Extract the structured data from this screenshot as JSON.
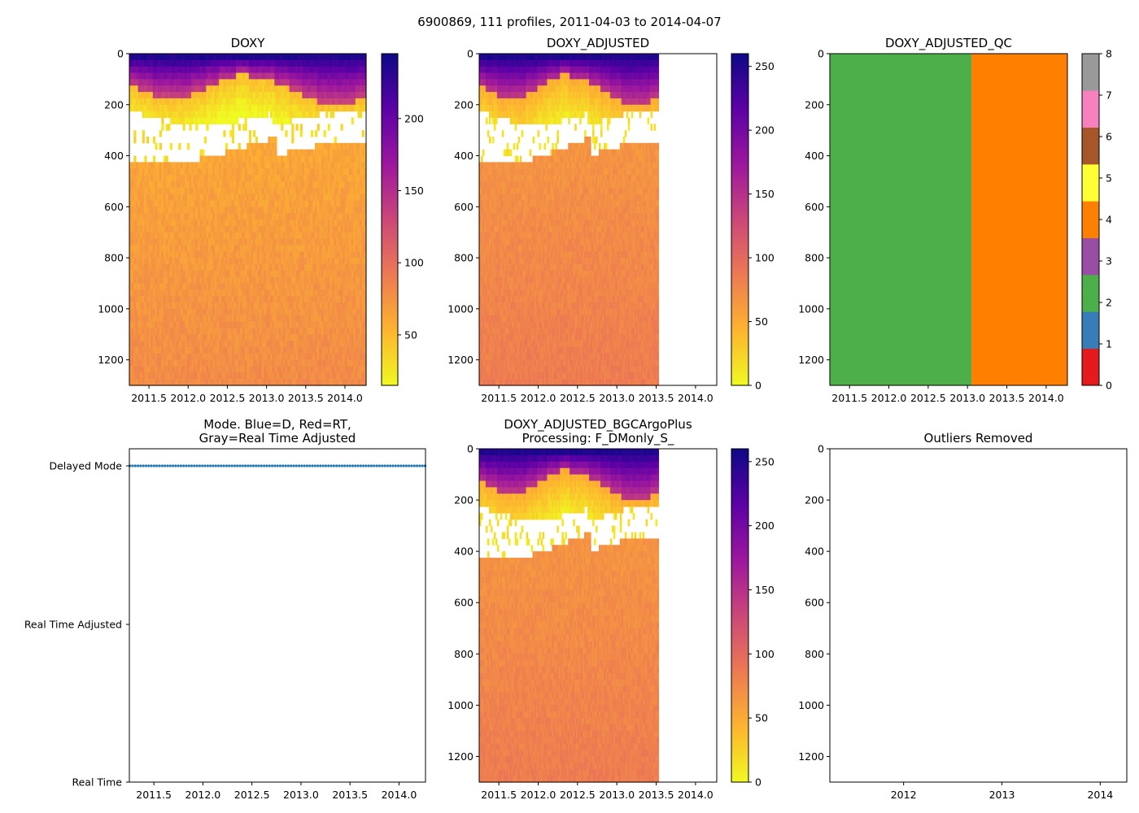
{
  "suptitle": "6900869, 111 profiles, 2011-04-03 to 2014-04-07",
  "colors": {
    "plasma_stops": [
      "#f0f921",
      "#fdb42f",
      "#ed7953",
      "#cc4778",
      "#9c179e",
      "#5c01a6",
      "#0d0887"
    ],
    "qc": [
      "#e41a1c",
      "#377eb8",
      "#4daf4a",
      "#984ea3",
      "#ff7f00",
      "#ffff33",
      "#a65628",
      "#f781bf",
      "#999999"
    ],
    "mode_marker": "#1f77b4"
  },
  "chart_data": [
    {
      "id": "doxy",
      "type": "heatmap",
      "title": "DOXY",
      "xlabel": "",
      "ylabel": "",
      "xlim": [
        2011.25,
        2014.27
      ],
      "ylim": [
        1300,
        0
      ],
      "data_xrange": [
        2011.25,
        2014.27
      ],
      "xticks": [
        "2011.5",
        "2012.0",
        "2012.5",
        "2013.0",
        "2013.5",
        "2014.0"
      ],
      "yticks": [
        "0",
        "200",
        "400",
        "600",
        "800",
        "1000",
        "1200"
      ],
      "colorbar": {
        "range": [
          15,
          245
        ],
        "ticks": [
          "50",
          "100",
          "150",
          "200"
        ]
      },
      "surface_values_umol_kg": [
        235,
        215,
        180,
        120
      ],
      "deep_value_umol_kg": 80,
      "low_oxygen_gap": "white (values below color range) between ~150 m and ~500 m"
    },
    {
      "id": "doxy_adjusted",
      "type": "heatmap",
      "title": "DOXY_ADJUSTED",
      "xlabel": "",
      "ylabel": "",
      "xlim": [
        2011.25,
        2014.27
      ],
      "ylim": [
        1300,
        0
      ],
      "data_xrange": [
        2011.25,
        2013.53
      ],
      "xticks": [
        "2011.5",
        "2012.0",
        "2012.5",
        "2013.0",
        "2013.5",
        "2014.0"
      ],
      "yticks": [
        "0",
        "200",
        "400",
        "600",
        "800",
        "1000",
        "1200"
      ],
      "colorbar": {
        "range": [
          0,
          260
        ],
        "ticks": [
          "0",
          "50",
          "100",
          "150",
          "200",
          "250"
        ]
      },
      "surface_values_umol_kg": [
        250,
        225,
        190,
        130
      ],
      "deep_value_umol_kg": 85
    },
    {
      "id": "doxy_adjusted_qc",
      "type": "heatmap",
      "title": "DOXY_ADJUSTED_QC",
      "xlabel": "",
      "ylabel": "",
      "xlim": [
        2011.25,
        2014.27
      ],
      "ylim": [
        1300,
        0
      ],
      "xticks": [
        "2011.5",
        "2012.0",
        "2012.5",
        "2013.0",
        "2013.5",
        "2014.0"
      ],
      "yticks": [
        "0",
        "200",
        "400",
        "600",
        "800",
        "1000",
        "1200"
      ],
      "qc_segments": [
        {
          "flag": 2,
          "x_from": 2011.25,
          "x_to": 2013.05
        },
        {
          "flag": 4,
          "x_from": 2013.05,
          "x_to": 2014.27
        }
      ],
      "colorbar": {
        "range": [
          0,
          8
        ],
        "ticks": [
          "0",
          "1",
          "2",
          "3",
          "4",
          "5",
          "6",
          "7",
          "8"
        ]
      }
    },
    {
      "id": "mode",
      "type": "scatter",
      "title": "Mode. Blue=D, Red=RT,\nGray=Real Time Adjusted",
      "title_lines": [
        "Mode. Blue=D, Red=RT,",
        "Gray=Real Time Adjusted"
      ],
      "xlabel": "",
      "ylabel": "",
      "xlim": [
        2011.25,
        2014.27
      ],
      "categories": [
        "Delayed Mode",
        "Real Time Adjusted",
        "Real Time"
      ],
      "xticks": [
        "2011.5",
        "2012.0",
        "2012.5",
        "2013.0",
        "2013.5",
        "2014.0"
      ],
      "profiles": 111,
      "mode": "Delayed Mode",
      "x_first": 2011.256,
      "x_last": 2014.266
    },
    {
      "id": "doxy_adjusted_bgc",
      "type": "heatmap",
      "title": "DOXY_ADJUSTED_BGCArgoPlus\nProcessing: F_DMonly_S_",
      "title_lines": [
        "DOXY_ADJUSTED_BGCArgoPlus",
        "Processing: F_DMonly_S_"
      ],
      "xlabel": "",
      "ylabel": "",
      "xlim": [
        2011.25,
        2014.27
      ],
      "ylim": [
        1300,
        0
      ],
      "data_xrange": [
        2011.25,
        2013.53
      ],
      "xticks": [
        "2011.5",
        "2012.0",
        "2012.5",
        "2013.0",
        "2013.5",
        "2014.0"
      ],
      "yticks": [
        "0",
        "200",
        "400",
        "600",
        "800",
        "1000",
        "1200"
      ],
      "colorbar": {
        "range": [
          0,
          260
        ],
        "ticks": [
          "0",
          "50",
          "100",
          "150",
          "200",
          "250"
        ]
      },
      "surface_values_umol_kg": [
        250,
        225,
        190,
        130
      ],
      "deep_value_umol_kg": 85
    },
    {
      "id": "outliers",
      "type": "scatter",
      "title": "Outliers Removed",
      "xlabel": "",
      "ylabel": "",
      "xlim": [
        2011.25,
        2014.27
      ],
      "ylim": [
        1300,
        0
      ],
      "xticks": [
        "2012",
        "2013",
        "2014"
      ],
      "yticks": [
        "0",
        "200",
        "400",
        "600",
        "800",
        "1000",
        "1200"
      ],
      "points": []
    }
  ]
}
